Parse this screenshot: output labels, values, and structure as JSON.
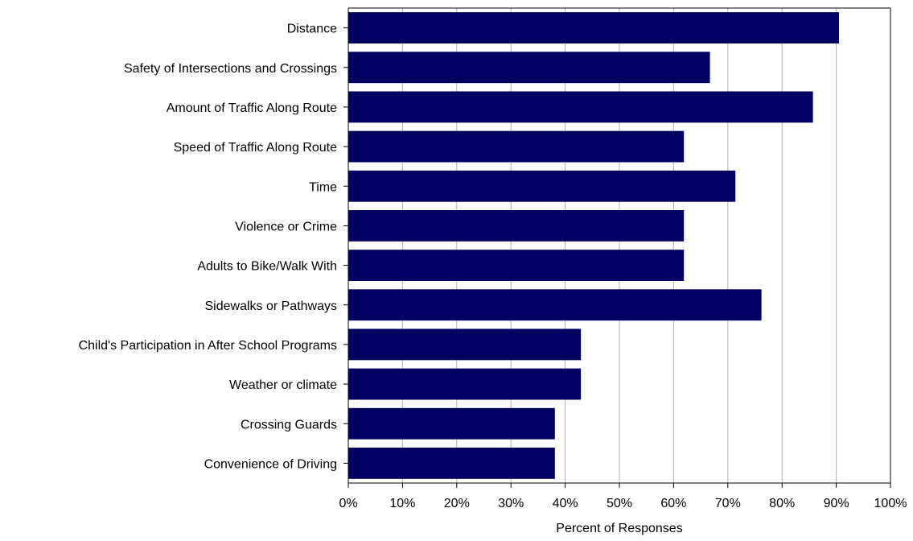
{
  "chart_data": {
    "type": "bar",
    "orientation": "horizontal",
    "title": "",
    "xlabel": "Percent of Responses",
    "ylabel": "",
    "xlim": [
      0,
      100
    ],
    "x_ticks": [
      "0%",
      "10%",
      "20%",
      "30%",
      "40%",
      "50%",
      "60%",
      "70%",
      "80%",
      "90%",
      "100%"
    ],
    "grid": "vertical",
    "categories": [
      "Distance",
      "Safety of Intersections and Crossings",
      "Amount of Traffic Along Route",
      "Speed of Traffic Along Route",
      "Time",
      "Violence or Crime",
      "Adults to Bike/Walk With",
      "Sidewalks or Pathways",
      "Child's Participation in After School Programs",
      "Weather or climate",
      "Crossing Guards",
      "Convenience of Driving"
    ],
    "values": [
      90.5,
      66.7,
      85.7,
      61.9,
      71.4,
      61.9,
      61.9,
      76.2,
      42.9,
      42.9,
      38.1,
      38.1
    ],
    "colors": {
      "bar": "#000060",
      "grid": "#b0b0b0",
      "axis": "#000000"
    }
  }
}
